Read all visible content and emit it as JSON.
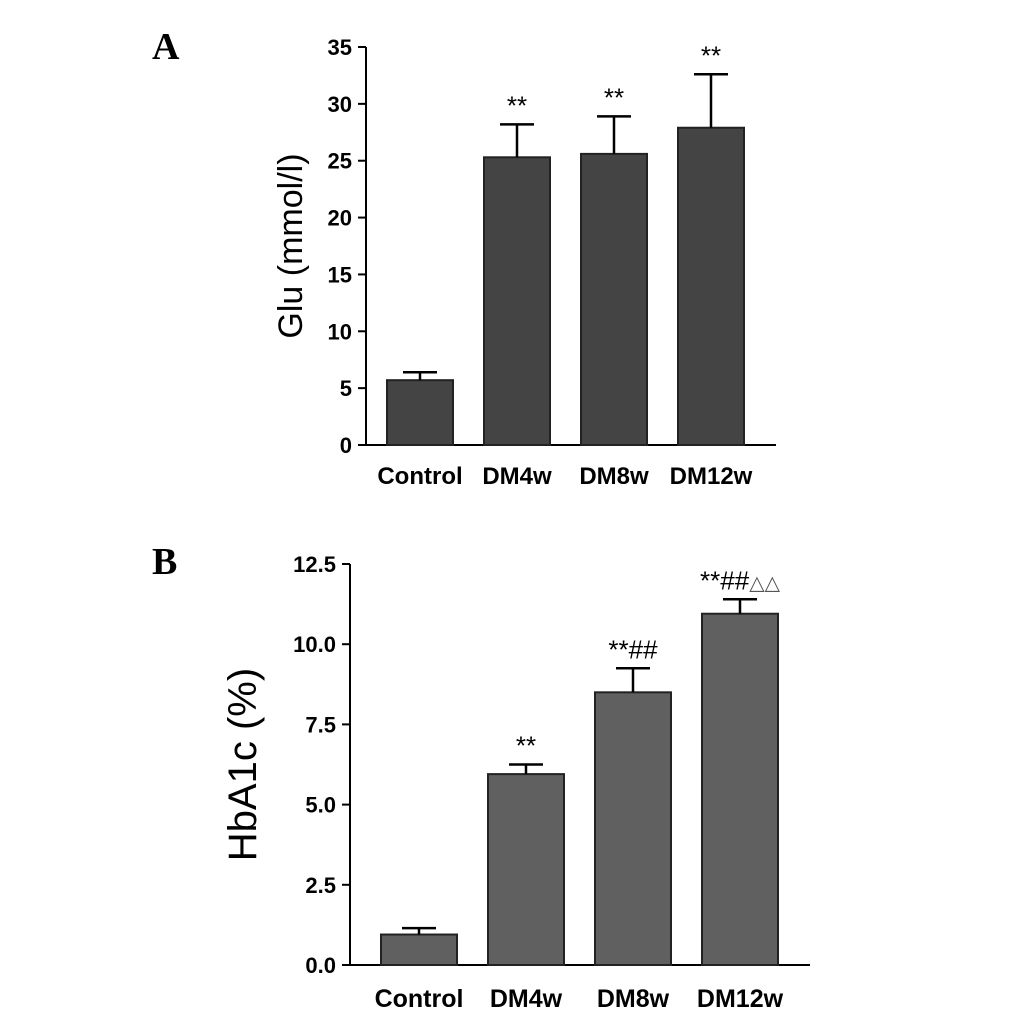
{
  "colors": {
    "bar_a": "#444444",
    "bar_b": "#606060",
    "axis": "#000000"
  },
  "chart_data": [
    {
      "panel": "A",
      "type": "bar",
      "categories": [
        "Control",
        "DM4w",
        "DM8w",
        "DM12w"
      ],
      "values": [
        5.7,
        25.3,
        25.6,
        27.9
      ],
      "errors": [
        0.7,
        2.9,
        3.3,
        4.7
      ],
      "annotations": [
        "",
        "**",
        "**",
        "**"
      ],
      "annotations_tri": [
        "",
        "",
        "",
        ""
      ],
      "ylabel": "Glu (mmol/l)",
      "ylim": [
        0,
        35
      ],
      "yticks": [
        0,
        5,
        10,
        15,
        20,
        25,
        30,
        35
      ],
      "ytick_labels": [
        "0",
        "5",
        "10",
        "15",
        "20",
        "25",
        "30",
        "35"
      ],
      "grid": false
    },
    {
      "panel": "B",
      "type": "bar",
      "categories": [
        "Control",
        "DM4w",
        "DM8w",
        "DM12w"
      ],
      "values": [
        0.95,
        5.95,
        8.5,
        10.95
      ],
      "errors": [
        0.2,
        0.3,
        0.75,
        0.45
      ],
      "annotations": [
        "",
        "**",
        "**##",
        "**##"
      ],
      "annotations_tri": [
        "",
        "",
        "",
        "△△"
      ],
      "ylabel": "HbA1c (%)",
      "ylim": [
        0,
        12.5
      ],
      "yticks": [
        0,
        2.5,
        5,
        7.5,
        10,
        12.5
      ],
      "ytick_labels": [
        "0.0",
        "2.5",
        "5.0",
        "7.5",
        "10.0",
        "12.5"
      ],
      "grid": false
    }
  ]
}
